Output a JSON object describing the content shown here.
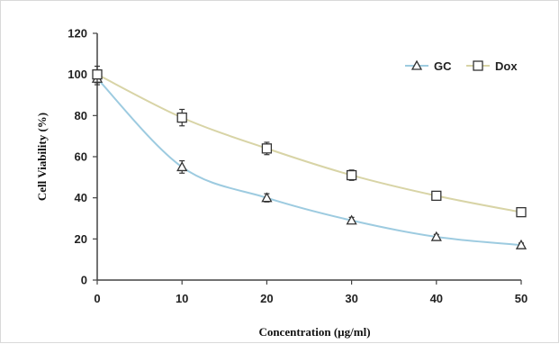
{
  "chart_data": {
    "type": "line",
    "title": "",
    "xlabel": "Concentration (µg/ml)",
    "ylabel": "Cell Viability (%)",
    "x": [
      0,
      10,
      20,
      30,
      40,
      50
    ],
    "xlim": [
      0,
      50
    ],
    "ylim": [
      0,
      120
    ],
    "x_ticks": [
      0,
      10,
      20,
      30,
      40,
      50
    ],
    "y_ticks": [
      0,
      20,
      40,
      60,
      80,
      100,
      120
    ],
    "grid": false,
    "legend_position": "top-right",
    "series": [
      {
        "name": "GC",
        "marker": "triangle",
        "color": "#9dcbe0",
        "values": [
          98,
          55,
          40,
          29,
          21,
          17
        ],
        "errors": [
          3,
          3,
          2,
          1.5,
          1.2,
          1
        ]
      },
      {
        "name": "Dox",
        "marker": "square",
        "color": "#d8d4a6",
        "values": [
          100,
          79,
          64,
          51,
          41,
          33
        ],
        "errors": [
          4,
          4,
          3,
          2.5,
          2,
          1.5
        ]
      }
    ]
  }
}
